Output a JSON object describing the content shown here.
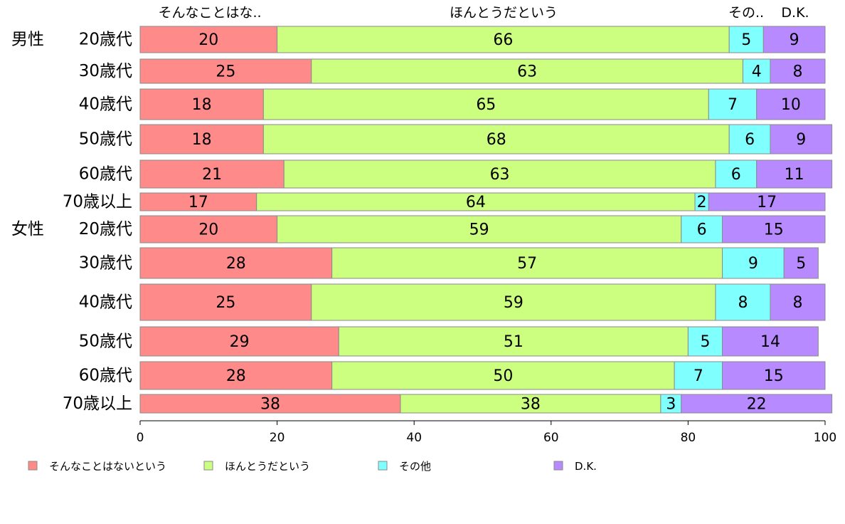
{
  "chart_data": {
    "type": "bar",
    "orientation": "horizontal",
    "stacked": true,
    "column_headers": [
      "そんなことはな..",
      "ほんとうだという",
      "その..",
      "D.K."
    ],
    "groups": [
      {
        "label": "男性",
        "rows": [
          "20歳代",
          "30歳代",
          "40歳代",
          "50歳代",
          "60歳代",
          "70歳以上"
        ]
      },
      {
        "label": "女性",
        "rows": [
          "20歳代",
          "30歳代",
          "40歳代",
          "50歳代",
          "60歳代",
          "70歳以上"
        ]
      }
    ],
    "categories": [
      "20歳代",
      "30歳代",
      "40歳代",
      "50歳代",
      "60歳代",
      "70歳以上",
      "20歳代",
      "30歳代",
      "40歳代",
      "50歳代",
      "60歳代",
      "70歳以上"
    ],
    "series": [
      {
        "name": "そんなことはないという",
        "color": "#ff8a8a",
        "values": [
          20,
          25,
          18,
          18,
          21,
          17,
          20,
          28,
          25,
          29,
          28,
          38
        ]
      },
      {
        "name": "ほんとうだという",
        "color": "#ccff80",
        "values": [
          66,
          63,
          65,
          68,
          63,
          64,
          59,
          57,
          59,
          51,
          50,
          38
        ]
      },
      {
        "name": "その他",
        "color": "#80ffff",
        "values": [
          5,
          4,
          7,
          6,
          6,
          2,
          6,
          9,
          8,
          5,
          7,
          3
        ]
      },
      {
        "name": "D.K.",
        "color": "#b88aff",
        "values": [
          9,
          8,
          10,
          9,
          11,
          17,
          15,
          5,
          8,
          14,
          15,
          22
        ]
      }
    ],
    "xlim": [
      0,
      100
    ],
    "xticks": [
      0,
      20,
      40,
      60,
      80,
      100
    ],
    "legend": {
      "position": "bottom"
    },
    "grid": false
  }
}
